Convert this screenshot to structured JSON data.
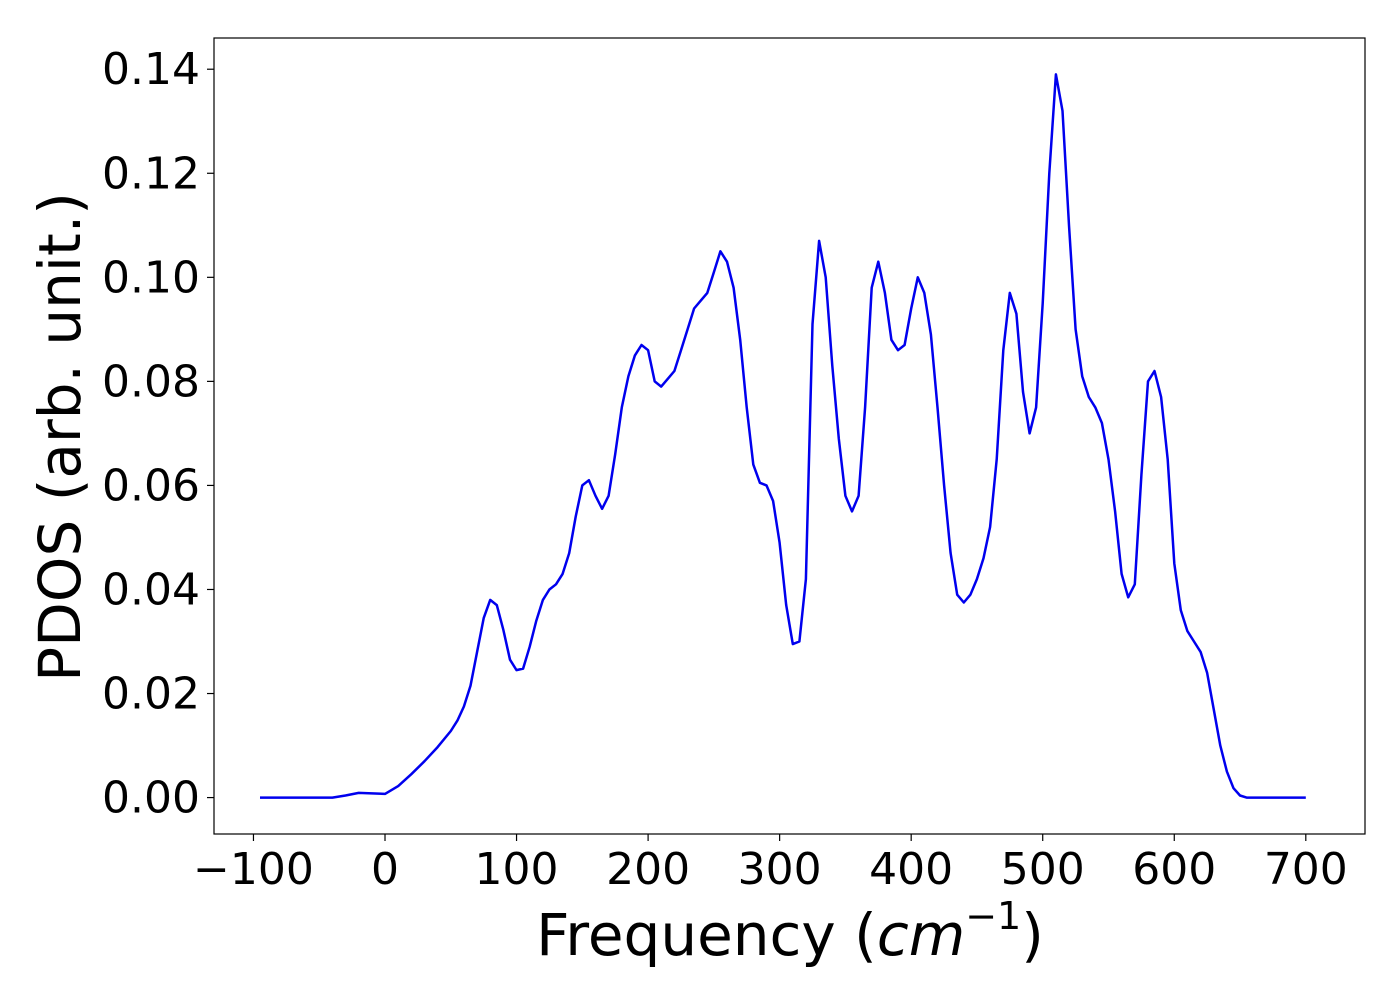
{
  "chart_data": {
    "type": "line",
    "title": "",
    "xlabel": "Frequency (",
    "xlabel_unit_base": "cm",
    "xlabel_unit_exp": "−1",
    "xlabel_close": ")",
    "ylabel": "PDOS (arb. unit.)",
    "xlim": [
      -130,
      745
    ],
    "ylim": [
      -0.007,
      0.146
    ],
    "xticks": [
      -100,
      0,
      100,
      200,
      300,
      400,
      500,
      600,
      700
    ],
    "xtick_labels": [
      "−100",
      "0",
      "100",
      "200",
      "300",
      "400",
      "500",
      "600",
      "700"
    ],
    "yticks": [
      0.0,
      0.02,
      0.04,
      0.06,
      0.08,
      0.1,
      0.12,
      0.14
    ],
    "ytick_labels": [
      "0.00",
      "0.02",
      "0.04",
      "0.06",
      "0.08",
      "0.10",
      "0.12",
      "0.14"
    ],
    "grid": false,
    "series": [
      {
        "color": "#0000ee",
        "x": [
          -95,
          -40,
          -30,
          -20,
          -10,
          0,
          10,
          20,
          30,
          40,
          50,
          55,
          60,
          65,
          70,
          75,
          80,
          85,
          90,
          95,
          100,
          105,
          110,
          115,
          120,
          125,
          130,
          135,
          140,
          145,
          150,
          155,
          160,
          165,
          170,
          175,
          180,
          185,
          190,
          195,
          200,
          205,
          210,
          215,
          220,
          225,
          230,
          235,
          240,
          245,
          250,
          255,
          260,
          265,
          270,
          275,
          280,
          285,
          290,
          295,
          300,
          305,
          310,
          315,
          320,
          325,
          330,
          335,
          340,
          345,
          350,
          355,
          360,
          365,
          370,
          375,
          380,
          385,
          390,
          395,
          400,
          405,
          410,
          415,
          420,
          425,
          430,
          435,
          440,
          445,
          450,
          455,
          460,
          465,
          470,
          475,
          480,
          485,
          490,
          495,
          500,
          505,
          510,
          515,
          520,
          525,
          530,
          535,
          540,
          545,
          550,
          555,
          560,
          565,
          570,
          575,
          580,
          585,
          590,
          595,
          600,
          605,
          610,
          615,
          620,
          625,
          630,
          635,
          640,
          645,
          650,
          655,
          660,
          700
        ],
        "y": [
          0.0,
          0.0,
          0.0004,
          0.0009,
          0.0008,
          0.0007,
          0.0022,
          0.0045,
          0.007,
          0.0097,
          0.0128,
          0.0148,
          0.0175,
          0.0215,
          0.028,
          0.0345,
          0.038,
          0.037,
          0.0322,
          0.0265,
          0.0245,
          0.0248,
          0.029,
          0.034,
          0.038,
          0.04,
          0.041,
          0.043,
          0.047,
          0.054,
          0.06,
          0.061,
          0.058,
          0.0555,
          0.058,
          0.066,
          0.075,
          0.081,
          0.085,
          0.087,
          0.086,
          0.08,
          0.079,
          0.0805,
          0.082,
          0.086,
          0.09,
          0.094,
          0.0955,
          0.097,
          0.101,
          0.105,
          0.103,
          0.098,
          0.088,
          0.075,
          0.064,
          0.0605,
          0.06,
          0.057,
          0.049,
          0.037,
          0.0295,
          0.03,
          0.042,
          0.091,
          0.107,
          0.1,
          0.083,
          0.069,
          0.058,
          0.055,
          0.058,
          0.075,
          0.098,
          0.103,
          0.097,
          0.088,
          0.086,
          0.087,
          0.094,
          0.1,
          0.097,
          0.089,
          0.075,
          0.06,
          0.047,
          0.039,
          0.0375,
          0.039,
          0.042,
          0.046,
          0.052,
          0.065,
          0.086,
          0.097,
          0.093,
          0.078,
          0.07,
          0.075,
          0.095,
          0.12,
          0.139,
          0.132,
          0.11,
          0.09,
          0.081,
          0.077,
          0.075,
          0.072,
          0.065,
          0.055,
          0.043,
          0.0385,
          0.041,
          0.062,
          0.08,
          0.082,
          0.077,
          0.065,
          0.045,
          0.036,
          0.032,
          0.03,
          0.028,
          0.024,
          0.017,
          0.01,
          0.005,
          0.0018,
          0.0004,
          0.0,
          0.0,
          0.0
        ]
      }
    ]
  }
}
